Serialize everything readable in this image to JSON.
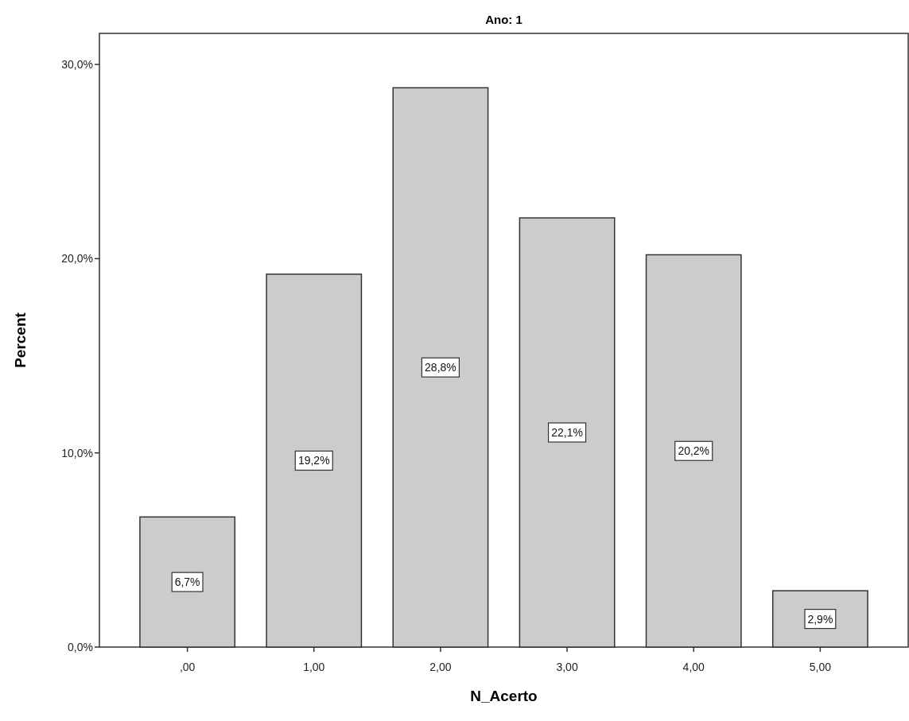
{
  "chart_data": {
    "type": "bar",
    "title": "Ano: 1",
    "xlabel": "N_Acerto",
    "ylabel": "Percent",
    "categories": [
      ",00",
      "1,00",
      "2,00",
      "3,00",
      "4,00",
      "5,00"
    ],
    "values": [
      6.7,
      19.2,
      28.8,
      22.1,
      20.2,
      2.9
    ],
    "value_labels": [
      "6,7%",
      "19,2%",
      "28,8%",
      "22,1%",
      "20,2%",
      "2,9%"
    ],
    "color": "#cccccc",
    "ylim": [
      0,
      31.6
    ],
    "yticks": [
      {
        "value": 0,
        "label": "0,0%"
      },
      {
        "value": 10,
        "label": "10,0%"
      },
      {
        "value": 20,
        "label": "20,0%"
      },
      {
        "value": 30,
        "label": "30,0%"
      }
    ],
    "grid": false
  }
}
